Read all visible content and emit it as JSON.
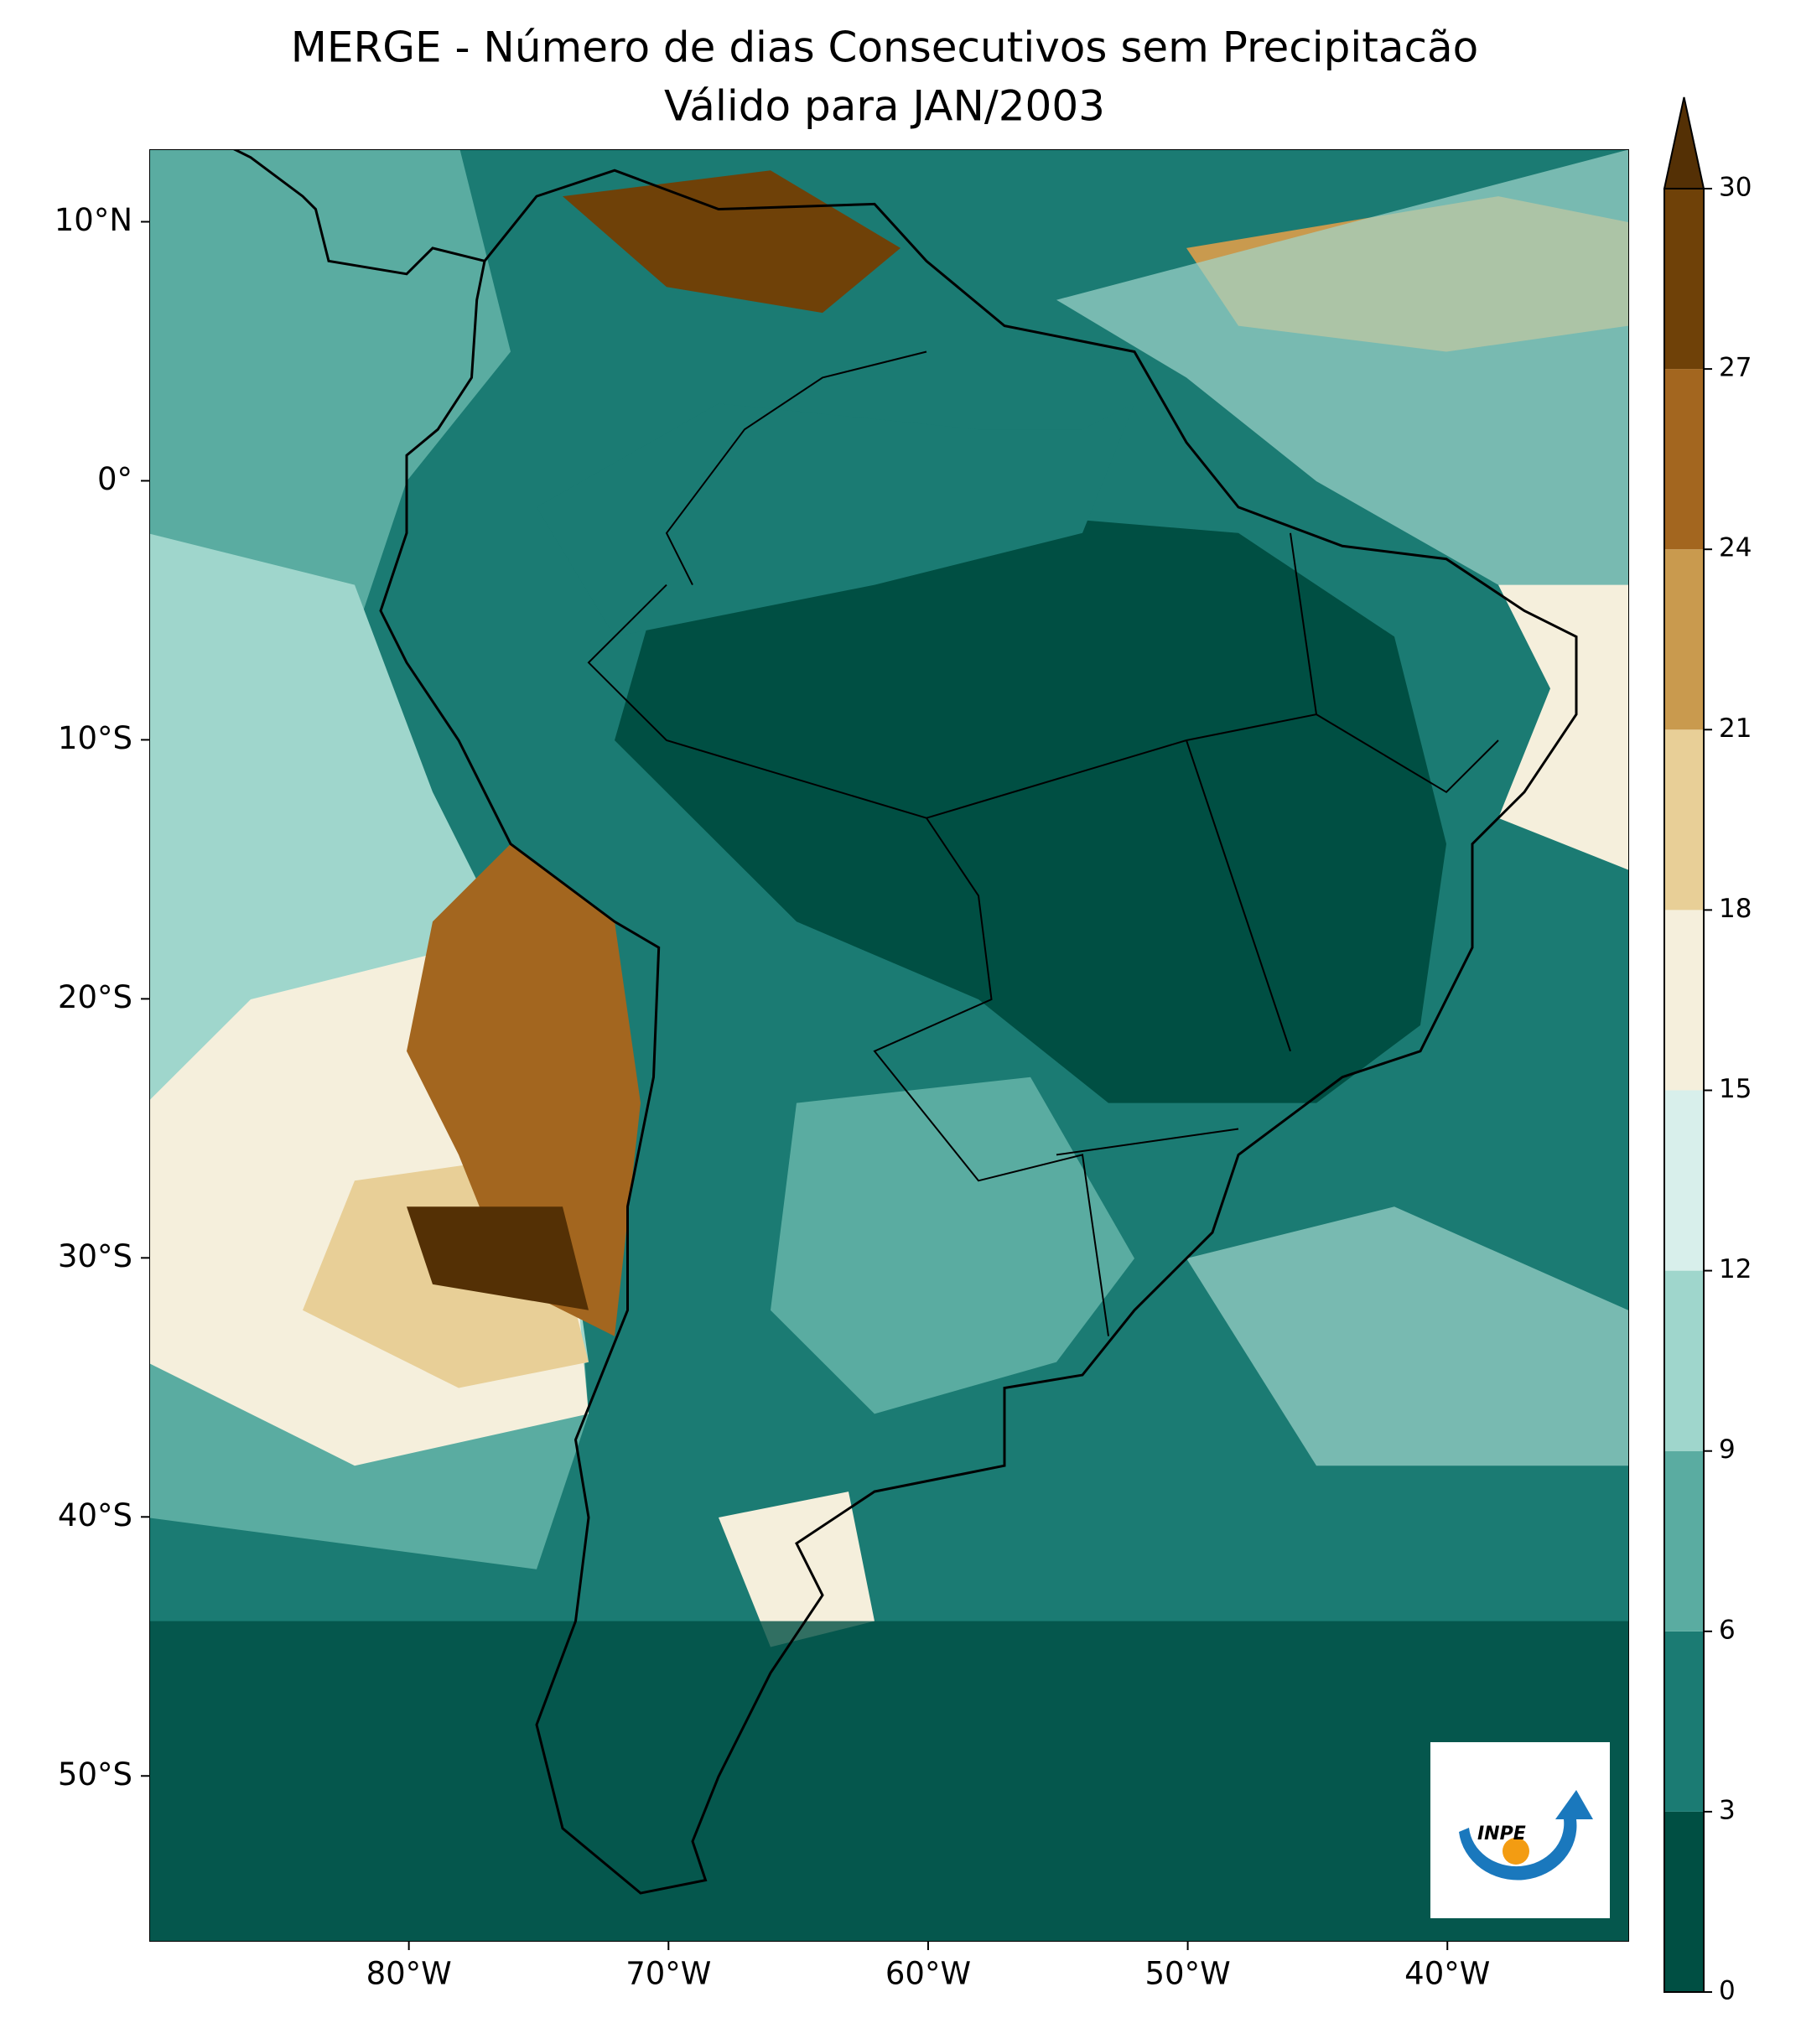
{
  "title": [
    "MERGE - Número de dias Consecutivos sem Precipitacão",
    "Válido para JAN/2003"
  ],
  "map": {
    "lonlim": [
      -90,
      -33
    ],
    "latlim": [
      -56.4,
      12.8
    ],
    "lat_ticks": [
      {
        "value": 10,
        "label": "10°N"
      },
      {
        "value": 0,
        "label": "0°"
      },
      {
        "value": -10,
        "label": "10°S"
      },
      {
        "value": -20,
        "label": "20°S"
      },
      {
        "value": -30,
        "label": "30°S"
      },
      {
        "value": -40,
        "label": "40°S"
      },
      {
        "value": -50,
        "label": "50°S"
      }
    ],
    "lon_ticks": [
      {
        "value": -80,
        "label": "80°W"
      },
      {
        "value": -70,
        "label": "70°W"
      },
      {
        "value": -60,
        "label": "60°W"
      },
      {
        "value": -50,
        "label": "50°W"
      },
      {
        "value": -40,
        "label": "40°W"
      }
    ]
  },
  "colorbar": {
    "ticks": [
      0,
      3,
      6,
      9,
      12,
      15,
      18,
      21,
      24,
      27,
      30
    ],
    "colors": [
      "#004f43",
      "#1b7b73",
      "#5aaca1",
      "#9fd6cc",
      "#d8efeb",
      "#f5efdc",
      "#e8cf97",
      "#c99a4e",
      "#a3661f",
      "#6f4108"
    ],
    "extend_color": "#543005"
  },
  "logo": {
    "text": "INPE"
  }
}
